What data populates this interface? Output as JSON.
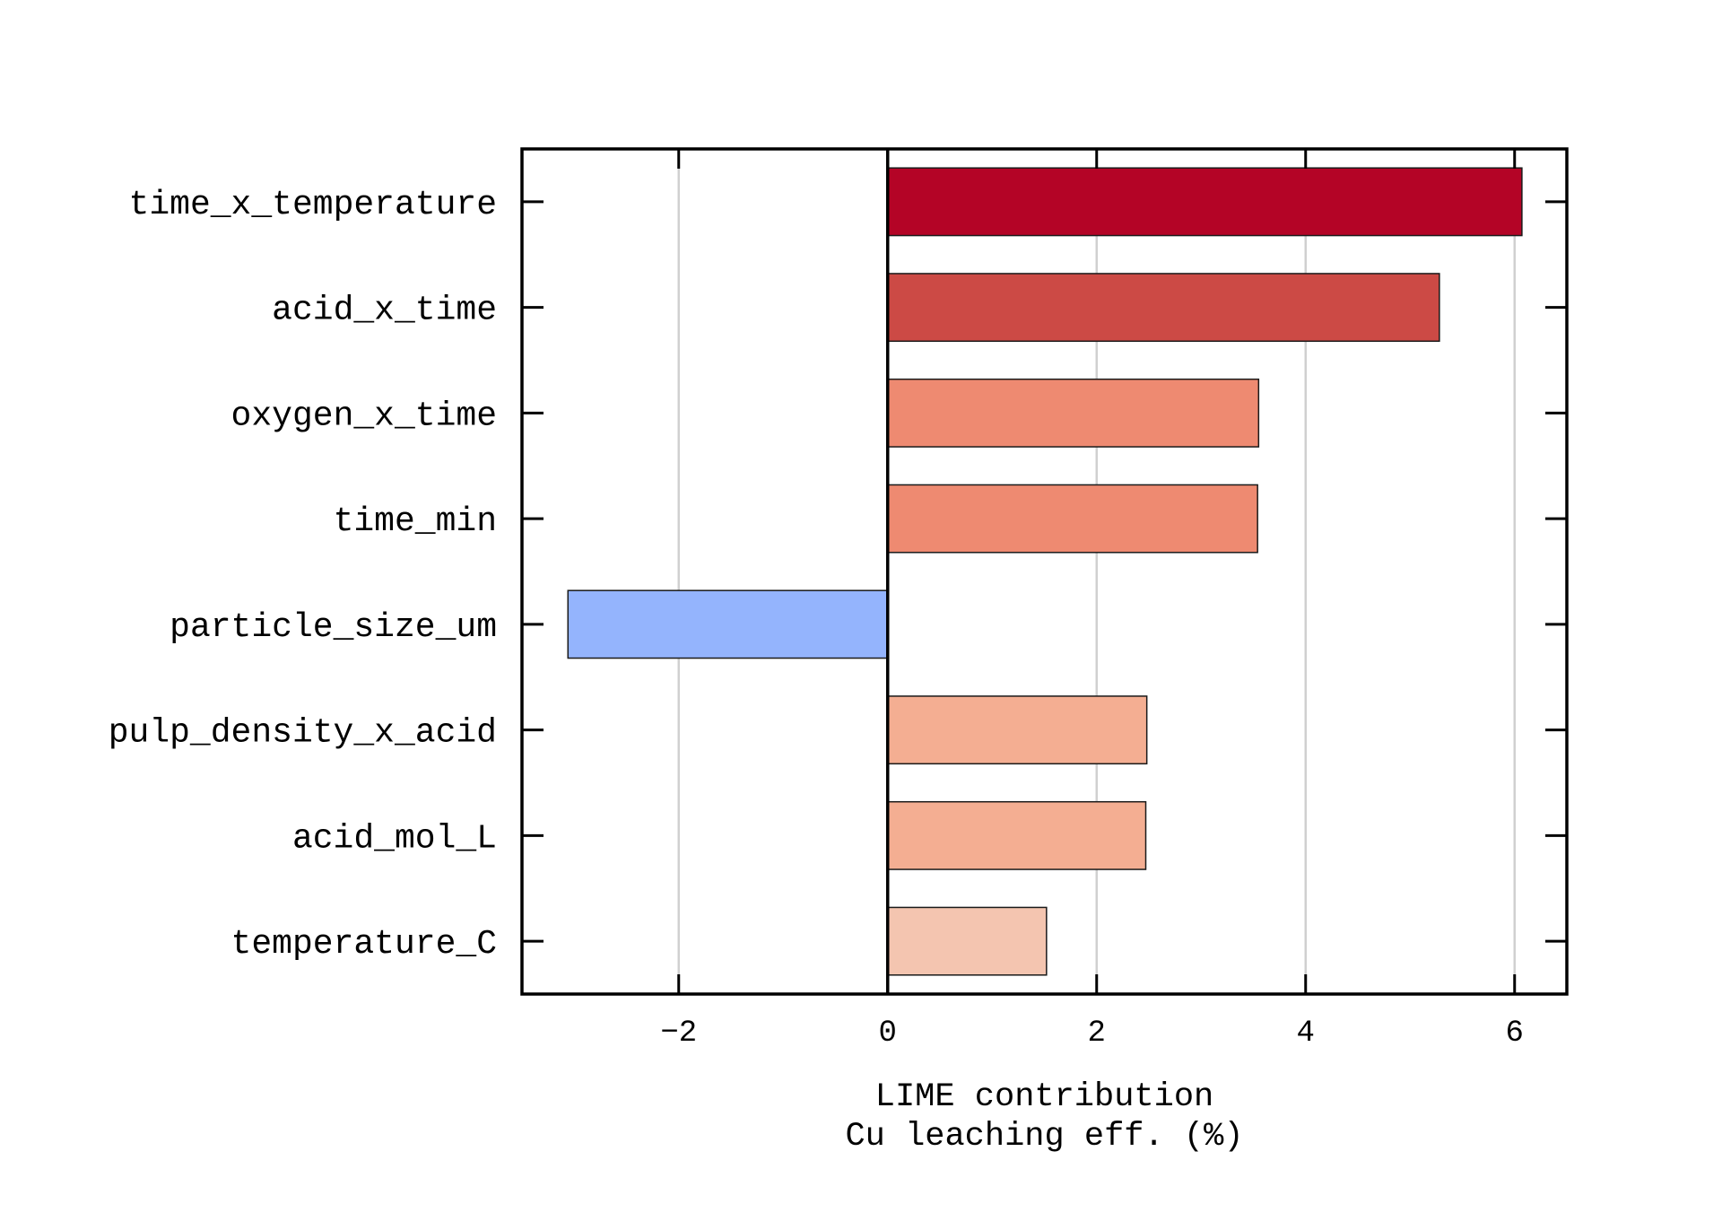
{
  "chart_data": {
    "type": "bar",
    "orientation": "horizontal",
    "xlabel_lines": [
      "LIME contribution",
      "Cu leaching eff. (%)"
    ],
    "xlim": [
      -3.5,
      6.5
    ],
    "xticks": [
      -2,
      0,
      2,
      4,
      6
    ],
    "xtick_labels": [
      "−2",
      "0",
      "2",
      "4",
      "6"
    ],
    "grid": "vertical",
    "categories": [
      "time_x_temperature",
      "acid_x_time",
      "oxygen_x_time",
      "time_min",
      "particle_size_um",
      "pulp_density_x_acid",
      "acid_mol_L",
      "temperature_C"
    ],
    "values": [
      6.07,
      5.28,
      3.55,
      3.54,
      -3.06,
      2.48,
      2.47,
      1.52
    ],
    "colors": [
      "#b40426",
      "#cc4a45",
      "#ee8a71",
      "#ee8a71",
      "#94b4fd",
      "#f4ae92",
      "#f4ae92",
      "#f4c5b0"
    ]
  }
}
